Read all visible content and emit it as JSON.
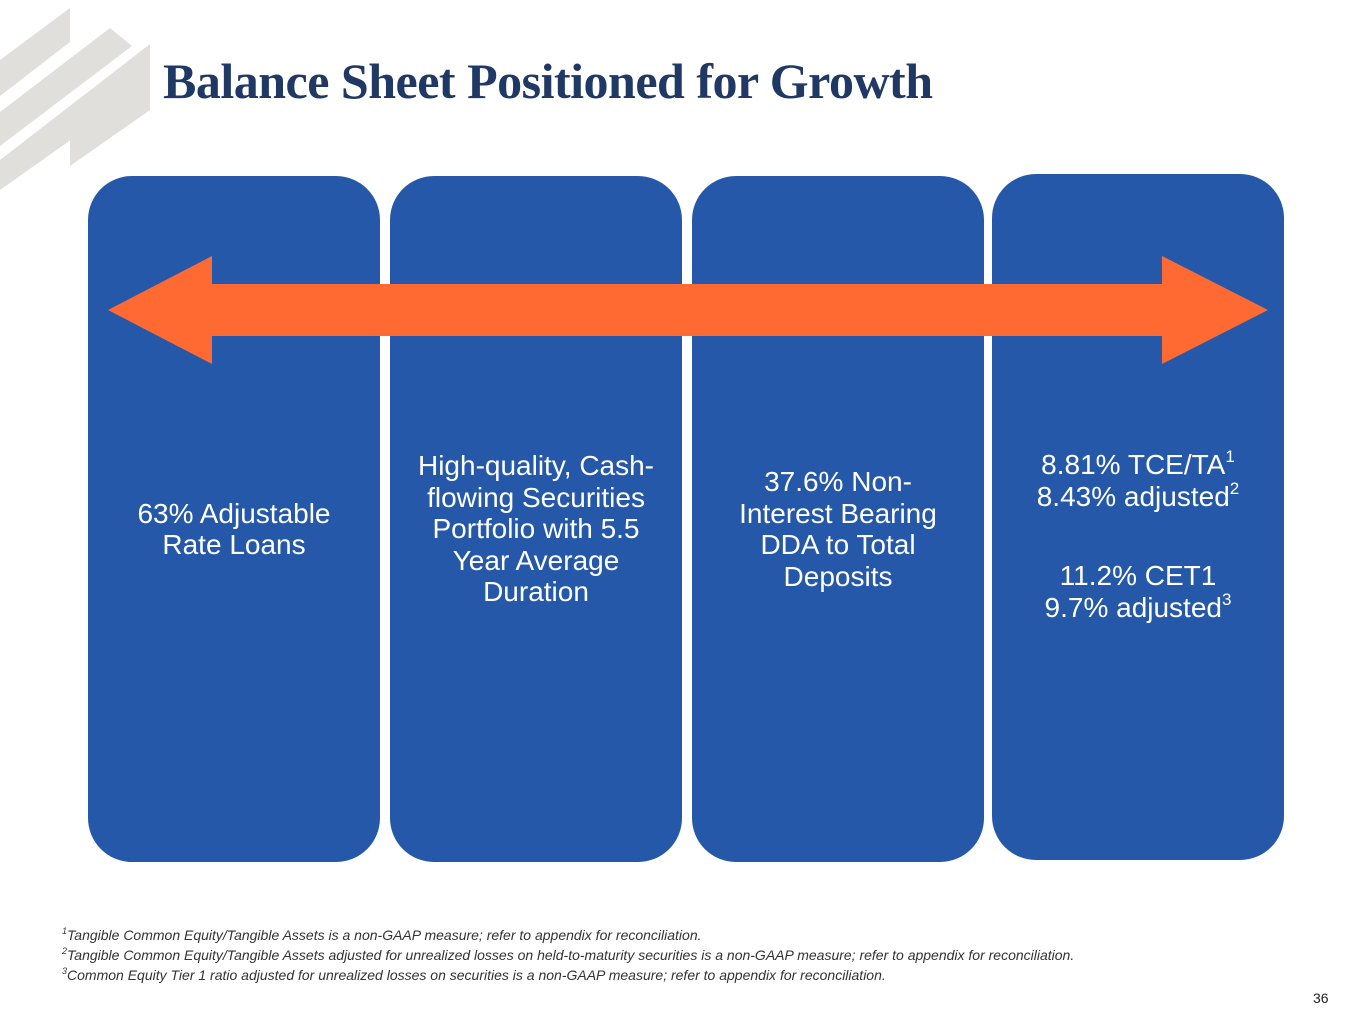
{
  "header": {
    "title": "Balance Sheet Positioned for Growth"
  },
  "cards": [
    {
      "text": "63% Adjustable Rate Loans"
    },
    {
      "text": "High-quality, Cash-flowing Securities Portfolio with 5.5 Year Average Duration"
    },
    {
      "text": "37.6% Non-Interest Bearing DDA to Total Deposits"
    },
    {
      "line1": "8.81% TCE/TA",
      "line1_sup": "1",
      "line2": "8.43% adjusted",
      "line2_sup": "2",
      "line3": "11.2% CET1",
      "line4": "9.7% adjusted",
      "line4_sup": "3"
    }
  ],
  "arrow": {
    "color": "#ff6a33"
  },
  "footnotes": [
    {
      "marker": "1",
      "text": "Tangible Common Equity/Tangible Assets is a non-GAAP measure; refer to appendix for reconciliation."
    },
    {
      "marker": "2",
      "text": "Tangible Common Equity/Tangible Assets adjusted for unrealized losses on held-to-maturity securities is a non-GAAP measure; refer to appendix for reconciliation."
    },
    {
      "marker": "3",
      "text": "Common Equity Tier 1 ratio adjusted for unrealized losses on securities is a non-GAAP measure; refer to appendix for reconciliation."
    }
  ],
  "page_number": "36",
  "colors": {
    "card": "#2558a8",
    "title": "#1f3864",
    "logo_stripe": "#e0dfdc"
  }
}
